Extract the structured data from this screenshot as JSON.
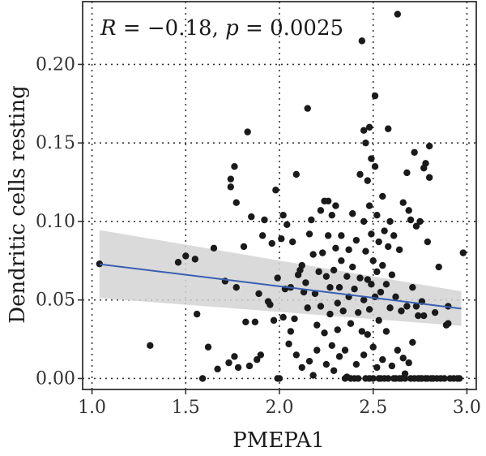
{
  "chart_data": {
    "type": "scatter",
    "title": "",
    "annotation": {
      "r_symbol": "R",
      "r_value": " = −0.18, ",
      "p_symbol": "p",
      "p_value": " = 0.0025"
    },
    "xlabel": "PMEPA1",
    "ylabel": "Dendritic cells resting",
    "xlim": [
      0.95,
      3.05
    ],
    "ylim": [
      -0.007,
      0.24
    ],
    "xticks": [
      1.0,
      1.5,
      2.0,
      2.5,
      3.0
    ],
    "xtick_labels": [
      "1.0",
      "1.5",
      "2.0",
      "2.5",
      "3.0"
    ],
    "yticks": [
      0.0,
      0.05,
      0.1,
      0.15,
      0.2
    ],
    "ytick_labels": [
      "0.00",
      "0.05",
      "0.10",
      "0.15",
      "0.20"
    ],
    "grid": true,
    "colors": {
      "points": "#1a1a1a",
      "fit_line": "#3a5fb0",
      "ci_band": "#d3d3d3",
      "grid": "#333333",
      "frame": "#333333"
    },
    "fit": {
      "x": [
        1.04,
        2.97
      ],
      "y": [
        0.0728,
        0.0445
      ],
      "ci_upper": [
        0.0945,
        0.0555
      ],
      "ci_lower": [
        0.0512,
        0.0335
      ]
    },
    "points": [
      [
        1.04,
        0.073
      ],
      [
        1.31,
        0.021
      ],
      [
        1.46,
        0.074
      ],
      [
        1.5,
        0.078
      ],
      [
        1.55,
        0.076
      ],
      [
        1.56,
        0.041
      ],
      [
        1.59,
        0.0
      ],
      [
        1.62,
        0.02
      ],
      [
        1.65,
        0.083
      ],
      [
        1.67,
        0.006
      ],
      [
        1.71,
        0.062
      ],
      [
        1.73,
        0.01
      ],
      [
        1.74,
        0.122
      ],
      [
        1.74,
        0.127
      ],
      [
        1.76,
        0.135
      ],
      [
        1.76,
        0.014
      ],
      [
        1.77,
        0.058
      ],
      [
        1.77,
        0.112
      ],
      [
        1.78,
        0.007
      ],
      [
        1.81,
        0.084
      ],
      [
        1.82,
        0.036
      ],
      [
        1.83,
        0.157
      ],
      [
        1.84,
        0.008
      ],
      [
        1.85,
        0.103
      ],
      [
        1.87,
        0.036
      ],
      [
        1.88,
        0.012
      ],
      [
        1.89,
        0.054
      ],
      [
        1.9,
        0.015
      ],
      [
        1.91,
        0.091
      ],
      [
        1.92,
        0.101
      ],
      [
        1.94,
        0.049
      ],
      [
        1.95,
        0.047
      ],
      [
        1.96,
        0.086
      ],
      [
        1.97,
        0.037
      ],
      [
        1.98,
        0.12
      ],
      [
        1.99,
        0.064
      ],
      [
        1.99,
        0.0
      ],
      [
        2.0,
        0.0
      ],
      [
        2.01,
        0.089
      ],
      [
        2.02,
        0.104
      ],
      [
        2.02,
        0.039
      ],
      [
        2.03,
        0.057
      ],
      [
        2.04,
        0.098
      ],
      [
        2.05,
        0.022
      ],
      [
        2.06,
        0.03
      ],
      [
        2.06,
        0.058
      ],
      [
        2.07,
        0.087
      ],
      [
        2.08,
        0.038
      ],
      [
        2.09,
        0.13
      ],
      [
        2.09,
        0.015
      ],
      [
        2.1,
        0.066
      ],
      [
        2.11,
        0.069
      ],
      [
        2.12,
        0.072
      ],
      [
        2.12,
        0.007
      ],
      [
        2.13,
        0.055
      ],
      [
        2.14,
        0.061
      ],
      [
        2.15,
        0.172
      ],
      [
        2.15,
        0.045
      ],
      [
        2.16,
        0.092
      ],
      [
        2.16,
        0.011
      ],
      [
        2.17,
        0.101
      ],
      [
        2.18,
        0.079
      ],
      [
        2.18,
        0.002
      ],
      [
        2.19,
        0.054
      ],
      [
        2.2,
        0.018
      ],
      [
        2.2,
        0.034
      ],
      [
        2.21,
        0.068
      ],
      [
        2.22,
        0.107
      ],
      [
        2.22,
        0.046
      ],
      [
        2.23,
        0.08
      ],
      [
        2.24,
        0.113
      ],
      [
        2.24,
        0.029
      ],
      [
        2.25,
        0.065
      ],
      [
        2.25,
        0.009
      ],
      [
        2.26,
        0.091
      ],
      [
        2.26,
        0.113
      ],
      [
        2.27,
        0.041
      ],
      [
        2.27,
        0.058
      ],
      [
        2.28,
        0.021
      ],
      [
        2.28,
        0.104
      ],
      [
        2.29,
        0.069
      ],
      [
        2.29,
        0.005
      ],
      [
        2.3,
        0.11
      ],
      [
        2.3,
        0.083
      ],
      [
        2.31,
        0.048
      ],
      [
        2.31,
        0.031
      ],
      [
        2.32,
        0.058
      ],
      [
        2.32,
        0.014
      ],
      [
        2.33,
        0.091
      ],
      [
        2.33,
        0.075
      ],
      [
        2.34,
        0.043
      ],
      [
        2.35,
        0.0
      ],
      [
        2.35,
        0.018
      ],
      [
        2.36,
        0.065
      ],
      [
        2.36,
        0.001
      ],
      [
        2.37,
        0.082
      ],
      [
        2.37,
        0.052
      ],
      [
        2.38,
        0.0
      ],
      [
        2.38,
        0.035
      ],
      [
        2.39,
        0.105
      ],
      [
        2.39,
        0.071
      ],
      [
        2.4,
        0.0
      ],
      [
        2.4,
        0.057
      ],
      [
        2.41,
        0.009
      ],
      [
        2.41,
        0.088
      ],
      [
        2.42,
        0.042
      ],
      [
        2.42,
        0.0
      ],
      [
        2.43,
        0.13
      ],
      [
        2.43,
        0.064
      ],
      [
        2.44,
        0.03
      ],
      [
        2.44,
        0.215
      ],
      [
        2.45,
        0.158
      ],
      [
        2.45,
        0.1
      ],
      [
        2.45,
        0.05
      ],
      [
        2.45,
        0.015
      ],
      [
        2.46,
        0.15
      ],
      [
        2.46,
        0.081
      ],
      [
        2.46,
        0.0
      ],
      [
        2.47,
        0.126
      ],
      [
        2.47,
        0.063
      ],
      [
        2.47,
        0.028
      ],
      [
        2.48,
        0.16
      ],
      [
        2.48,
        0.11
      ],
      [
        2.48,
        0.044
      ],
      [
        2.48,
        0.0
      ],
      [
        2.49,
        0.14
      ],
      [
        2.49,
        0.092
      ],
      [
        2.49,
        0.06
      ],
      [
        2.5,
        0.02
      ],
      [
        2.5,
        0.075
      ],
      [
        2.5,
        0.0
      ],
      [
        2.51,
        0.18
      ],
      [
        2.51,
        0.135
      ],
      [
        2.51,
        0.052
      ],
      [
        2.52,
        0.007
      ],
      [
        2.52,
        0.104
      ],
      [
        2.52,
        0.068
      ],
      [
        2.53,
        0.0
      ],
      [
        2.53,
        0.087
      ],
      [
        2.53,
        0.037
      ],
      [
        2.54,
        0.055
      ],
      [
        2.54,
        0.0
      ],
      [
        2.55,
        0.116
      ],
      [
        2.55,
        0.072
      ],
      [
        2.55,
        0.012
      ],
      [
        2.56,
        0.094
      ],
      [
        2.56,
        0.0
      ],
      [
        2.57,
        0.06
      ],
      [
        2.57,
        0.03
      ],
      [
        2.58,
        0.159
      ],
      [
        2.58,
        0.084
      ],
      [
        2.58,
        0.0
      ],
      [
        2.59,
        0.045
      ],
      [
        2.59,
        0.1
      ],
      [
        2.6,
        0.008
      ],
      [
        2.6,
        0.066
      ],
      [
        2.61,
        0.0
      ],
      [
        2.61,
        0.091
      ],
      [
        2.62,
        0.052
      ],
      [
        2.62,
        0.0
      ],
      [
        2.63,
        0.232
      ],
      [
        2.63,
        0.018
      ],
      [
        2.64,
        0.082
      ],
      [
        2.64,
        0.0
      ],
      [
        2.65,
        0.043
      ],
      [
        2.65,
        0.0
      ],
      [
        2.66,
        0.013
      ],
      [
        2.66,
        0.112
      ],
      [
        2.67,
        0.003
      ],
      [
        2.67,
        0.0
      ],
      [
        2.68,
        0.046
      ],
      [
        2.68,
        0.131
      ],
      [
        2.69,
        0.01
      ],
      [
        2.69,
        0.107
      ],
      [
        2.7,
        0.0
      ],
      [
        2.7,
        0.101
      ],
      [
        2.71,
        0.023
      ],
      [
        2.71,
        0.058
      ],
      [
        2.72,
        0.0
      ],
      [
        2.72,
        0.144
      ],
      [
        2.73,
        0.046
      ],
      [
        2.73,
        0.097
      ],
      [
        2.74,
        0.0
      ],
      [
        2.74,
        0.04
      ],
      [
        2.75,
        0.0
      ],
      [
        2.75,
        0.1
      ],
      [
        2.76,
        0.049
      ],
      [
        2.76,
        0.0
      ],
      [
        2.77,
        0.134
      ],
      [
        2.77,
        0.04
      ],
      [
        2.78,
        0.0
      ],
      [
        2.78,
        0.137
      ],
      [
        2.79,
        0.087
      ],
      [
        2.79,
        0.0
      ],
      [
        2.8,
        0.148
      ],
      [
        2.8,
        0.128
      ],
      [
        2.81,
        0.0
      ],
      [
        2.82,
        0.0
      ],
      [
        2.83,
        0.042
      ],
      [
        2.84,
        0.0
      ],
      [
        2.85,
        0.071
      ],
      [
        2.86,
        0.0
      ],
      [
        2.88,
        0.0
      ],
      [
        2.89,
        0.034
      ],
      [
        2.9,
        0.046
      ],
      [
        2.9,
        0.035
      ],
      [
        2.91,
        0.0
      ],
      [
        2.93,
        0.0
      ],
      [
        2.95,
        0.0
      ],
      [
        2.96,
        0.0
      ],
      [
        2.98,
        0.08
      ]
    ]
  }
}
